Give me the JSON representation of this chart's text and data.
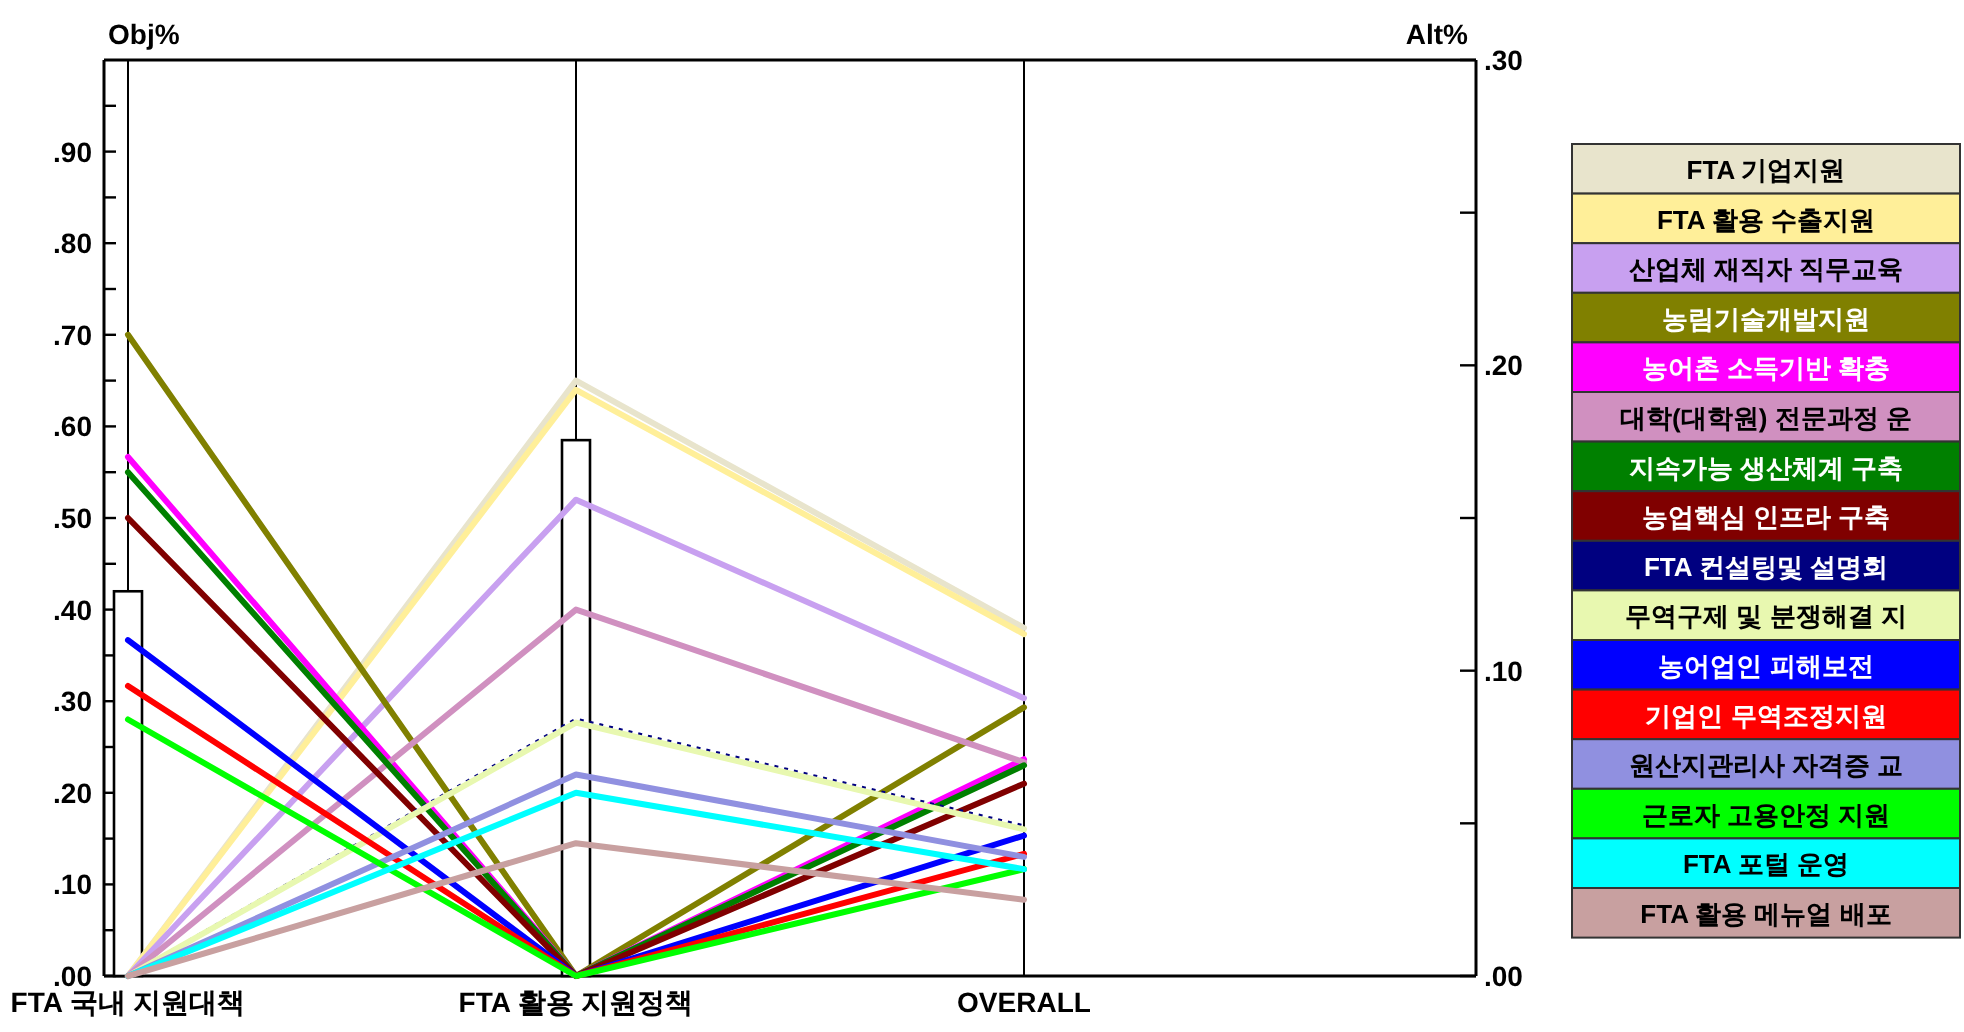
{
  "chart_data": {
    "type": "line",
    "categories": [
      "FTA 국내 지원대책",
      "FTA 활용 지원정책",
      "OVERALL"
    ],
    "ylabel": "Obj%",
    "y2label": "Alt%",
    "ylim": [
      0,
      1
    ],
    "yticks": [
      {
        "value": 0,
        "label": ".00"
      },
      {
        "value": 0.05,
        "label": null
      },
      {
        "value": 0.1,
        "label": ".10"
      },
      {
        "value": 0.15,
        "label": null
      },
      {
        "value": 0.2,
        "label": ".20"
      },
      {
        "value": 0.25,
        "label": null
      },
      {
        "value": 0.3,
        "label": ".30"
      },
      {
        "value": 0.35,
        "label": null
      },
      {
        "value": 0.4,
        "label": ".40"
      },
      {
        "value": 0.45,
        "label": null
      },
      {
        "value": 0.5,
        "label": ".50"
      },
      {
        "value": 0.55,
        "label": null
      },
      {
        "value": 0.6,
        "label": ".60"
      },
      {
        "value": 0.65,
        "label": null
      },
      {
        "value": 0.7,
        "label": ".70"
      },
      {
        "value": 0.75,
        "label": null
      },
      {
        "value": 0.8,
        "label": ".80"
      },
      {
        "value": 0.85,
        "label": null
      },
      {
        "value": 0.9,
        "label": ".90"
      },
      {
        "value": 0.95,
        "label": null
      }
    ],
    "y2lim": [
      0,
      0.3
    ],
    "y2ticks": [
      {
        "value": 0,
        "label": ".00"
      },
      {
        "value": 0.05,
        "label": null
      },
      {
        "value": 0.1,
        "label": ".10"
      },
      {
        "value": 0.15,
        "label": null
      },
      {
        "value": 0.2,
        "label": ".20"
      },
      {
        "value": 0.25,
        "label": null
      },
      {
        "value": 0.3,
        "label": ".30"
      }
    ],
    "grid": "x",
    "legend": "right",
    "series": [
      {
        "type": "bar",
        "color": "#ffffff",
        "values": [
          0.42,
          0.585,
          null
        ]
      },
      {
        "name": "FTA 기업지원",
        "color": "#e8e4cc",
        "axis": "y2",
        "values": [
          0,
          0.195,
          0.114
        ]
      },
      {
        "name": "FTA 활용 수출지원",
        "color": "#ffef99",
        "axis": "y2",
        "values": [
          0,
          0.192,
          0.112
        ]
      },
      {
        "name": "산업체 재직자 직무교육",
        "color": "#c8a0f0",
        "axis": "y2",
        "values": [
          0,
          0.156,
          0.091
        ]
      },
      {
        "name": "농림기술개발지원",
        "color": "#808000",
        "axis": "y2",
        "values": [
          0.21,
          0,
          0.088
        ]
      },
      {
        "name": "농어촌 소득기반 확충",
        "color": "#ff00ff",
        "axis": "y2",
        "values": [
          0.17,
          0,
          0.071
        ]
      },
      {
        "name": "대학(대학원) 전문과정 운",
        "color": "#d090c0",
        "axis": "y2",
        "values": [
          0,
          0.12,
          0.07
        ]
      },
      {
        "name": "지속가능 생산체계 구축",
        "color": "#008000",
        "axis": "y2",
        "values": [
          0.165,
          0,
          0.069
        ]
      },
      {
        "name": "농업핵심 인프라 구축",
        "color": "#800000",
        "axis": "y2",
        "values": [
          0.15,
          0,
          0.063
        ]
      },
      {
        "name": "FTA 컨설팅및 설명회",
        "color": "#000080",
        "axis": "y2",
        "line_style": "dotted",
        "values": [
          0,
          0.084,
          0.049
        ]
      },
      {
        "name": "무역구제 및 분쟁해결 지",
        "color": "#e8f8b0",
        "axis": "y2",
        "values": [
          0,
          0.083,
          0.048
        ]
      },
      {
        "name": "농어업인 피해보전",
        "color": "#0000ff",
        "axis": "y2",
        "values": [
          0.11,
          0,
          0.046
        ]
      },
      {
        "name": "기업인 무역조정지원",
        "color": "#ff0000",
        "axis": "y2",
        "values": [
          0.095,
          0,
          0.04
        ]
      },
      {
        "name": "원산지관리사 자격증 교",
        "color": "#9090e0",
        "axis": "y2",
        "values": [
          0,
          0.066,
          0.039
        ]
      },
      {
        "name": "근로자 고용안정 지원",
        "color": "#00ff00",
        "axis": "y2",
        "values": [
          0.084,
          0,
          0.035
        ]
      },
      {
        "name": "FTA 포털 운영",
        "color": "#00ffff",
        "axis": "y2",
        "values": [
          0,
          0.06,
          0.035
        ]
      },
      {
        "name": "FTA 활용 메뉴얼 배포",
        "color": "#c8a0a0",
        "axis": "y2",
        "values": [
          0,
          0.0435,
          0.025
        ]
      }
    ]
  }
}
